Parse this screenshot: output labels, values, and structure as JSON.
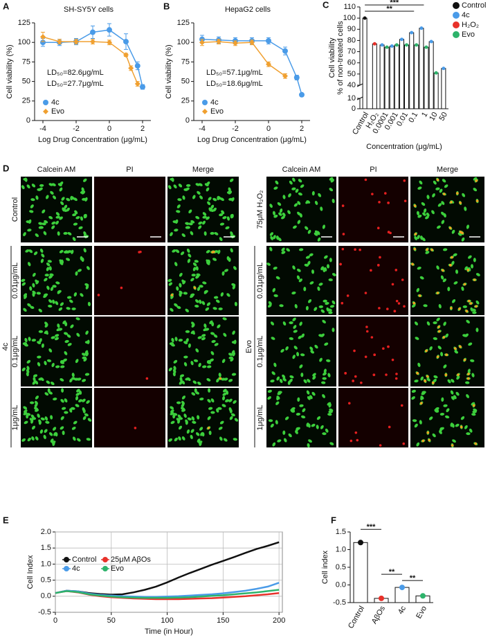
{
  "chart_data": [
    {
      "type": "line",
      "panel_label": "A",
      "title": "SH-SY5Y cells",
      "xlabel": "Log Drug Concentration (μg/mL)",
      "ylabel": "Cell viability (%)",
      "xlim": [
        -4.5,
        2.5
      ],
      "xticks": [
        -4,
        -2,
        0,
        2
      ],
      "ylim": [
        0,
        125
      ],
      "yticks": [
        0,
        25,
        50,
        75,
        100,
        125
      ],
      "legend": "lower left",
      "series": [
        {
          "name": "4c",
          "color": "#4a9be8",
          "marker": "circle",
          "annotation": "LD₅₀=82.6μg/mL",
          "x": [
            -4,
            -3,
            -2,
            -1,
            0,
            1,
            1.7,
            2
          ],
          "values": [
            100,
            100,
            101,
            113,
            116,
            101,
            70,
            43
          ],
          "errors": [
            5,
            4,
            4,
            8,
            8,
            10,
            5,
            3
          ]
        },
        {
          "name": "Evo",
          "color": "#f0a030",
          "marker": "diamond",
          "annotation": "LD₅₀=27.7μg/mL",
          "x": [
            -4,
            -3,
            -2,
            -1,
            0,
            1,
            1.3,
            1.7
          ],
          "values": [
            107,
            101,
            101,
            101,
            100,
            84,
            67,
            47
          ],
          "errors": [
            6,
            3,
            3,
            3,
            3,
            2,
            3,
            3
          ]
        }
      ]
    },
    {
      "type": "line",
      "panel_label": "B",
      "title": "HepaG2 cells",
      "xlabel": "Log Drug Concentration (μg/mL)",
      "ylabel": "Cell viability (%)",
      "xlim": [
        -4.5,
        2.5
      ],
      "xticks": [
        -4,
        -2,
        0,
        2
      ],
      "ylim": [
        0,
        125
      ],
      "yticks": [
        0,
        25,
        50,
        75,
        100,
        125
      ],
      "legend": "lower left",
      "series": [
        {
          "name": "4c",
          "color": "#4a9be8",
          "marker": "circle",
          "annotation": "LD₅₀=57.1μg/mL",
          "x": [
            -4,
            -3,
            -2,
            -1,
            0,
            1,
            1.7,
            2
          ],
          "values": [
            104,
            103,
            102,
            102,
            102,
            89,
            55,
            33
          ],
          "errors": [
            5,
            4,
            4,
            4,
            4,
            5,
            3,
            2
          ]
        },
        {
          "name": "Evo",
          "color": "#f0a030",
          "marker": "diamond",
          "annotation": "LD₅₀=18.6μg/mL",
          "x": [
            -4,
            -3,
            -2,
            -1,
            0,
            1
          ],
          "values": [
            100,
            101,
            99,
            100,
            72,
            57
          ],
          "errors": [
            4,
            3,
            3,
            3,
            3,
            3
          ]
        }
      ]
    },
    {
      "type": "bar",
      "panel_label": "C",
      "xlabel": "Concentration (μg/mL)",
      "ylabel": [
        "Cell viability",
        "% of non-treated cells"
      ],
      "categories": [
        "Control",
        "H₂O₂",
        "0.0001",
        "0.001",
        "0.01",
        "0.1",
        "1",
        "10",
        "50"
      ],
      "ylim": [
        0,
        110
      ],
      "y_break": [
        10,
        40
      ],
      "yticks": [
        0,
        10,
        40,
        50,
        60,
        70,
        80,
        90,
        100,
        110
      ],
      "legend": "right",
      "series": [
        {
          "name": "Control",
          "color": "#111111",
          "values": [
            100,
            null,
            null,
            null,
            null,
            null,
            null,
            null,
            null
          ]
        },
        {
          "name": "4c",
          "color": "#4a9be8",
          "values": [
            null,
            null,
            76,
            75,
            81,
            87,
            91,
            79,
            55
          ]
        },
        {
          "name": "H₂O₂",
          "color": "#e8312a",
          "values": [
            null,
            77,
            null,
            null,
            null,
            null,
            null,
            null,
            null
          ]
        },
        {
          "name": "Evo",
          "color": "#2db36b",
          "values": [
            null,
            null,
            74,
            76,
            76,
            76,
            74,
            51,
            null
          ]
        }
      ],
      "significance": [
        {
          "text": "***",
          "from": 0,
          "to": 6
        },
        {
          "text": "**",
          "from": 0,
          "to": 5
        }
      ]
    },
    {
      "type": "line",
      "panel_label": "E",
      "xlabel": "Time (in Hour)",
      "ylabel": "Cell Index",
      "grid": true,
      "legend": "upper left",
      "x": [
        0,
        10,
        20,
        30,
        40,
        50,
        60,
        70,
        80,
        90,
        100,
        110,
        120,
        130,
        140,
        150,
        160,
        170,
        180,
        190,
        200
      ],
      "xlim": [
        0,
        203
      ],
      "xticks": [
        0,
        50,
        100,
        150,
        200
      ],
      "ylim": [
        -0.5,
        2.0
      ],
      "yticks": [
        -0.5,
        {
          "value": 0,
          "label": "0.0"
        },
        0.5,
        {
          "value": 1,
          "label": "1.0"
        },
        1.5,
        {
          "value": 2,
          "label": "2.0"
        }
      ],
      "series": [
        {
          "name": "Control",
          "color": "#111111",
          "values": [
            0.1,
            0.17,
            0.15,
            0.1,
            0.07,
            0.05,
            0.06,
            0.12,
            0.2,
            0.3,
            0.43,
            0.58,
            0.72,
            0.85,
            0.98,
            1.1,
            1.22,
            1.35,
            1.47,
            1.57,
            1.68
          ]
        },
        {
          "name": "25μM AβOs",
          "color": "#e8312a",
          "values": [
            0.1,
            0.16,
            0.12,
            0.05,
            0.0,
            -0.03,
            -0.05,
            -0.07,
            -0.08,
            -0.09,
            -0.09,
            -0.09,
            -0.08,
            -0.07,
            -0.06,
            -0.04,
            -0.02,
            0.0,
            0.03,
            0.06,
            0.1
          ]
        },
        {
          "name": "4c",
          "color": "#4a9be8",
          "values": [
            0.1,
            0.17,
            0.15,
            0.08,
            0.04,
            0.02,
            0.0,
            -0.01,
            -0.02,
            -0.02,
            -0.01,
            0.0,
            0.02,
            0.04,
            0.06,
            0.09,
            0.13,
            0.17,
            0.23,
            0.3,
            0.42
          ]
        },
        {
          "name": "Evo",
          "color": "#2db36b",
          "values": [
            0.1,
            0.16,
            0.13,
            0.06,
            0.02,
            -0.01,
            -0.03,
            -0.04,
            -0.05,
            -0.05,
            -0.05,
            -0.04,
            -0.03,
            -0.01,
            0.01,
            0.03,
            0.06,
            0.09,
            0.12,
            0.16,
            0.2
          ]
        }
      ]
    },
    {
      "type": "bar",
      "panel_label": "F",
      "ylabel": "Cell index",
      "categories": [
        "Control",
        "AβOs",
        "4c",
        "Evo"
      ],
      "values": [
        1.2,
        -0.38,
        -0.07,
        -0.31
      ],
      "colors": [
        "#111111",
        "#e8312a",
        "#4a9be8",
        "#2db36b"
      ],
      "ylim": [
        -0.5,
        1.5
      ],
      "yticks": [
        -0.5,
        {
          "value": 0,
          "label": "0.0"
        },
        0.5,
        {
          "value": 1,
          "label": "1.0"
        },
        1.5
      ],
      "significance": [
        {
          "text": "***",
          "from": 0,
          "to": 1
        },
        {
          "text": "**",
          "from": 1,
          "to": 2
        },
        {
          "text": "**",
          "from": 2,
          "to": 3
        }
      ]
    }
  ],
  "microscopy": {
    "panel_label": "D",
    "left": {
      "group": "4c",
      "columns": [
        "Calcein AM",
        "PI",
        "Merge"
      ],
      "rows": [
        "Control",
        "0.01μg/mL",
        "0.1μg/mL",
        "1μg/mL"
      ]
    },
    "right": {
      "group": "Evo",
      "columns": [
        "Calcein AM",
        "PI",
        "Merge"
      ],
      "rows": [
        "75μM H₂O₂",
        "0.01μg/mL",
        "0.1μg/mL",
        "1μg/mL"
      ]
    }
  }
}
